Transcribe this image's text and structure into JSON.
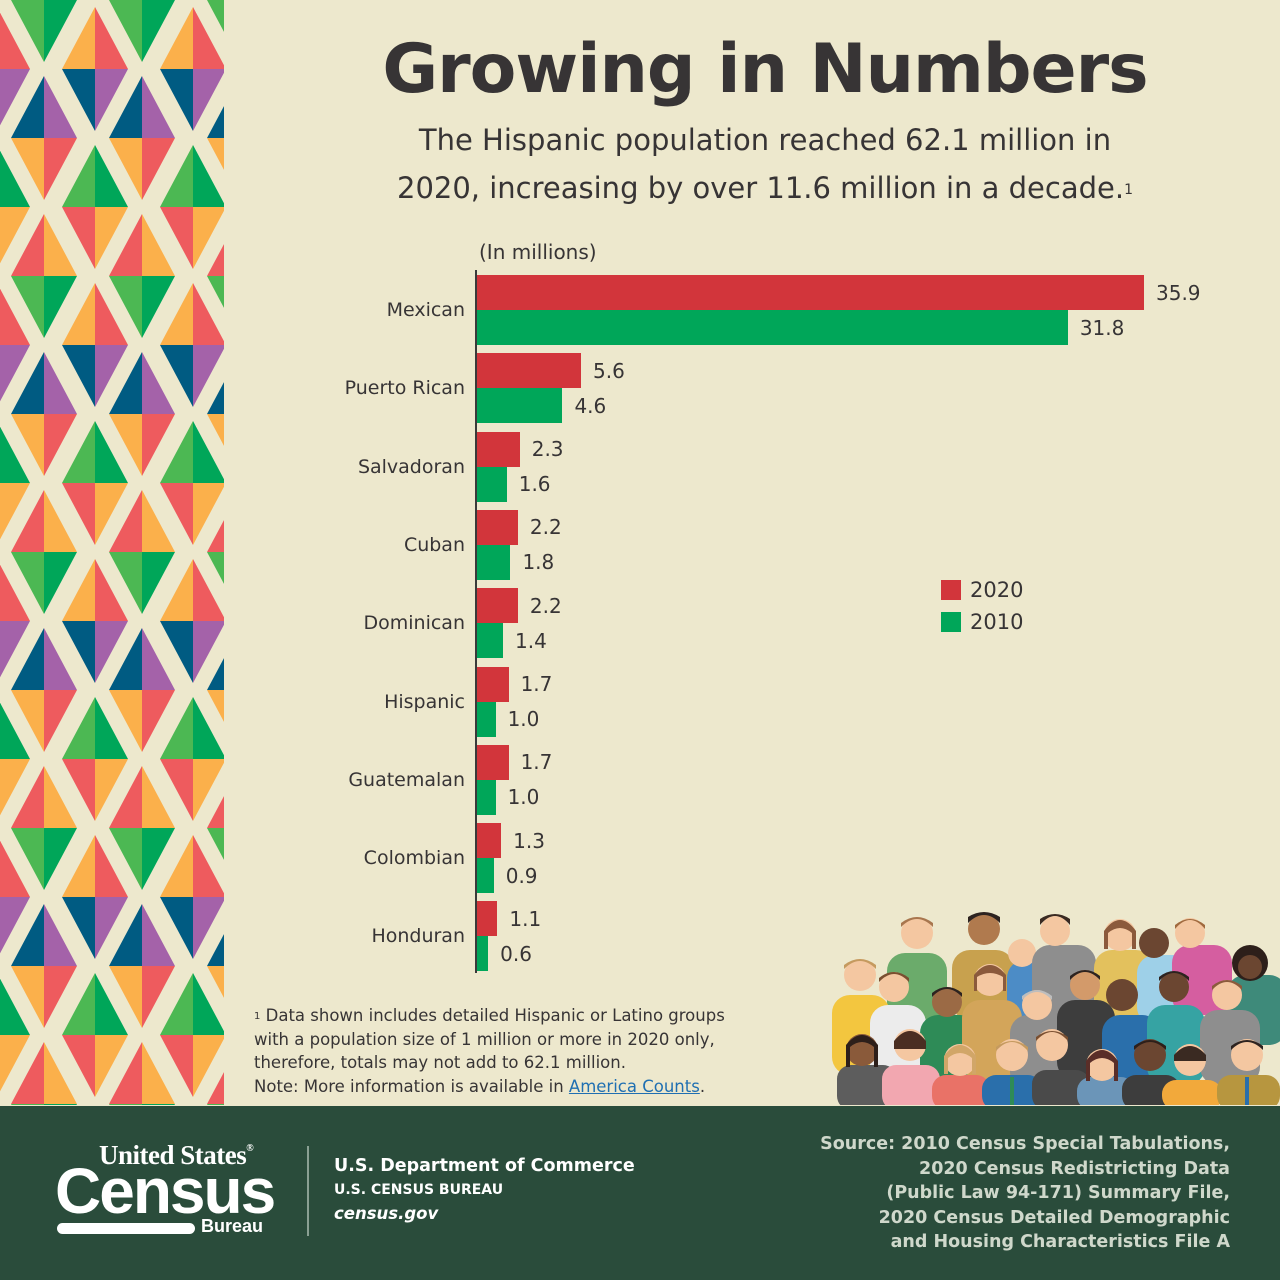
{
  "header": {
    "title": "Growing in Numbers",
    "subtitle_line1": "The Hispanic population reached 62.1 million in",
    "subtitle_line2": "2020, increasing by over 11.6 million in a decade.",
    "subtitle_footnote_marker": "1"
  },
  "chart_data": {
    "type": "bar",
    "orientation": "horizontal",
    "title": "Growing in Numbers",
    "subtitle": "The Hispanic population reached 62.1 million in 2020, increasing by over 11.6 million in a decade.",
    "unit_label": "(In millions)",
    "xlabel": "",
    "ylabel": "",
    "categories": [
      "Mexican",
      "Puerto Rican",
      "Salvadoran",
      "Cuban",
      "Dominican",
      "Hispanic",
      "Guatemalan",
      "Colombian",
      "Honduran"
    ],
    "series": [
      {
        "name": "2020",
        "color": "#d2353b",
        "values": [
          35.9,
          5.6,
          2.3,
          2.2,
          2.2,
          1.7,
          1.7,
          1.3,
          1.1
        ],
        "labels": [
          "35.9",
          "5.6",
          "2.3",
          "2.2",
          "2.2",
          "1.7",
          "1.7",
          "1.3",
          "1.1"
        ]
      },
      {
        "name": "2010",
        "color": "#00a659",
        "values": [
          31.8,
          4.6,
          1.6,
          1.8,
          1.4,
          1.0,
          1.0,
          0.9,
          0.6
        ],
        "labels": [
          "31.8",
          "4.6",
          "1.6",
          "1.8",
          "1.4",
          "1.0",
          "1.0",
          "0.9",
          "0.6"
        ]
      }
    ],
    "xlim": [
      0,
      36
    ],
    "grid": false,
    "legend_position": "right-middle",
    "legend": [
      "2020",
      "2010"
    ]
  },
  "legend": {
    "items": [
      {
        "label": "2020",
        "color": "#d2353b"
      },
      {
        "label": "2010",
        "color": "#00a659"
      }
    ]
  },
  "footnote": {
    "marker": "1",
    "line1": "Data shown includes detailed Hispanic or Latino groups",
    "line2": "with a population size of 1 million or more in 2020 only,",
    "line3": "therefore, totals may not add to 62.1 million.",
    "note_prefix": "Note: More information is available in ",
    "link_text": "America Counts",
    "note_suffix": "."
  },
  "footer": {
    "logo": {
      "top": "United States",
      "registered": "®",
      "main": "Census",
      "bottom": "Bureau"
    },
    "dept": {
      "line1": "U.S. Department of Commerce",
      "line2": "U.S. CENSUS BUREAU",
      "line3": "census.gov"
    },
    "source": [
      "Source: 2010 Census Special Tabulations,",
      "2020 Census Redistricting Data",
      "(Public Law 94-171) Summary File,",
      "2020 Census Detailed Demographic",
      "and Housing Characteristics File A"
    ]
  },
  "colors": {
    "background": "#ede8cd",
    "bar_2020": "#d2353b",
    "bar_2010": "#00a659",
    "footer": "#2a4c3b",
    "text": "#373435",
    "link": "#1f6fb2"
  }
}
